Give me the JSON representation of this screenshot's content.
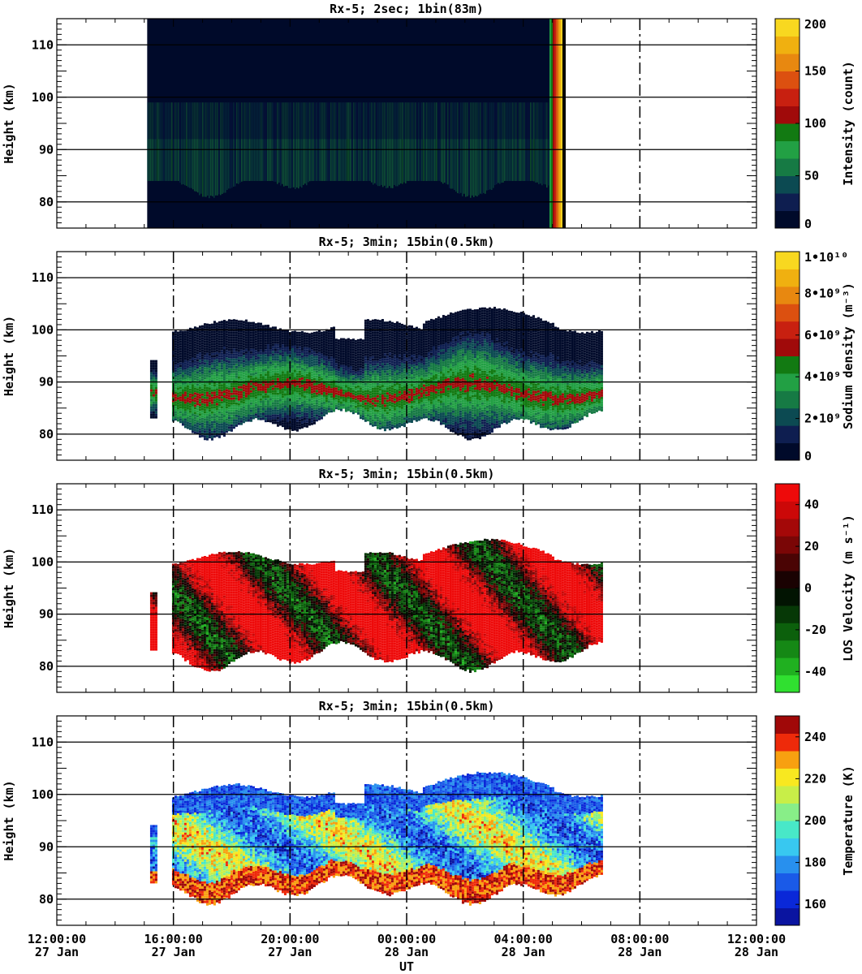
{
  "x_axis": {
    "label": "UT",
    "tick_times": [
      "12:00:00",
      "16:00:00",
      "20:00:00",
      "00:00:00",
      "04:00:00",
      "08:00:00",
      "12:00:00"
    ],
    "tick_dates": [
      "27 Jan",
      "27 Jan",
      "27 Jan",
      "28 Jan",
      "28 Jan",
      "28 Jan",
      "28 Jan"
    ],
    "range_hours": [
      0,
      24
    ]
  },
  "chart_data": [
    {
      "type": "heatmap",
      "title": "Rx-5;  2sec; 1bin(83m)",
      "ylabel": "Height (km)",
      "ylim": [
        75,
        115
      ],
      "yticks": [
        "80",
        "90",
        "100",
        "110"
      ],
      "colorbar": {
        "label": "Intensity (count)",
        "ticks": [
          "0",
          "50",
          "100",
          "150",
          "200"
        ],
        "range": [
          0,
          200
        ],
        "colors": [
          "#000a2a",
          "#0e1e50",
          "#0c4a52",
          "#167a44",
          "#22a044",
          "#127a12",
          "#a00a0a",
          "#c82010",
          "#dc5010",
          "#e88810",
          "#f0b010",
          "#f8d820"
        ]
      },
      "data_time_range_hours": [
        3.1,
        17.4
      ],
      "layer_km": [
        80,
        100
      ],
      "peak_km": 88
    },
    {
      "type": "heatmap",
      "title": "Rx-5; 3min; 15bin(0.5km)",
      "ylabel": "Height (km)",
      "ylim": [
        75,
        115
      ],
      "yticks": [
        "80",
        "90",
        "100",
        "110"
      ],
      "colorbar": {
        "label": "Sodium density (m⁻³)",
        "ticks": [
          "0",
          "2•10⁹",
          "4•10⁹",
          "6•10⁹",
          "8•10⁹",
          "1•10¹⁰"
        ],
        "range": [
          0,
          10000000000
        ],
        "colors": [
          "#000a2a",
          "#0e1e50",
          "#0c4a52",
          "#167a44",
          "#22a044",
          "#127a12",
          "#a00a0a",
          "#c82010",
          "#dc5010",
          "#e88810",
          "#f0b010",
          "#f8d820"
        ]
      },
      "data_time_range_hours": [
        3.2,
        18.7
      ],
      "bottom_km": 81,
      "top_km": 103
    },
    {
      "type": "heatmap",
      "title": "Rx-5; 3min; 15bin(0.5km)",
      "ylabel": "Height (km)",
      "ylim": [
        75,
        115
      ],
      "yticks": [
        "80",
        "90",
        "100",
        "110"
      ],
      "colorbar": {
        "label": "LOS Velocity (m s⁻¹)",
        "ticks": [
          "-40",
          "-20",
          "0",
          "20",
          "40"
        ],
        "range": [
          -50,
          50
        ],
        "colors": [
          "#30e030",
          "#20b020",
          "#158815",
          "#0c600c",
          "#063806",
          "#021402",
          "#1a0202",
          "#4a0404",
          "#7a0606",
          "#a40808",
          "#cc0808",
          "#ee0a0a"
        ]
      },
      "data_time_range_hours": [
        3.2,
        18.7
      ],
      "bottom_km": 81,
      "top_km": 103
    },
    {
      "type": "heatmap",
      "title": "Rx-5; 3min; 15bin(0.5km)",
      "ylabel": "Height (km)",
      "ylim": [
        75,
        115
      ],
      "yticks": [
        "80",
        "90",
        "100",
        "110"
      ],
      "xticks": [
        "12:00:00",
        "16:00:00",
        "20:00:00",
        "00:00:00",
        "04:00:00",
        "08:00:00",
        "12:00:00"
      ],
      "xlabel": "UT",
      "colorbar": {
        "label": "Temperature (K)",
        "ticks": [
          "160",
          "180",
          "200",
          "220",
          "240"
        ],
        "range": [
          150,
          250
        ],
        "colors": [
          "#0a14a0",
          "#0a28d8",
          "#1a5ae8",
          "#2890ee",
          "#38c8f0",
          "#48e8c8",
          "#88ee88",
          "#c8ee48",
          "#f8e820",
          "#f8a010",
          "#ee2a0a",
          "#a00808"
        ]
      },
      "data_time_range_hours": [
        3.2,
        18.7
      ],
      "bottom_km": 81,
      "top_km": 103
    }
  ]
}
